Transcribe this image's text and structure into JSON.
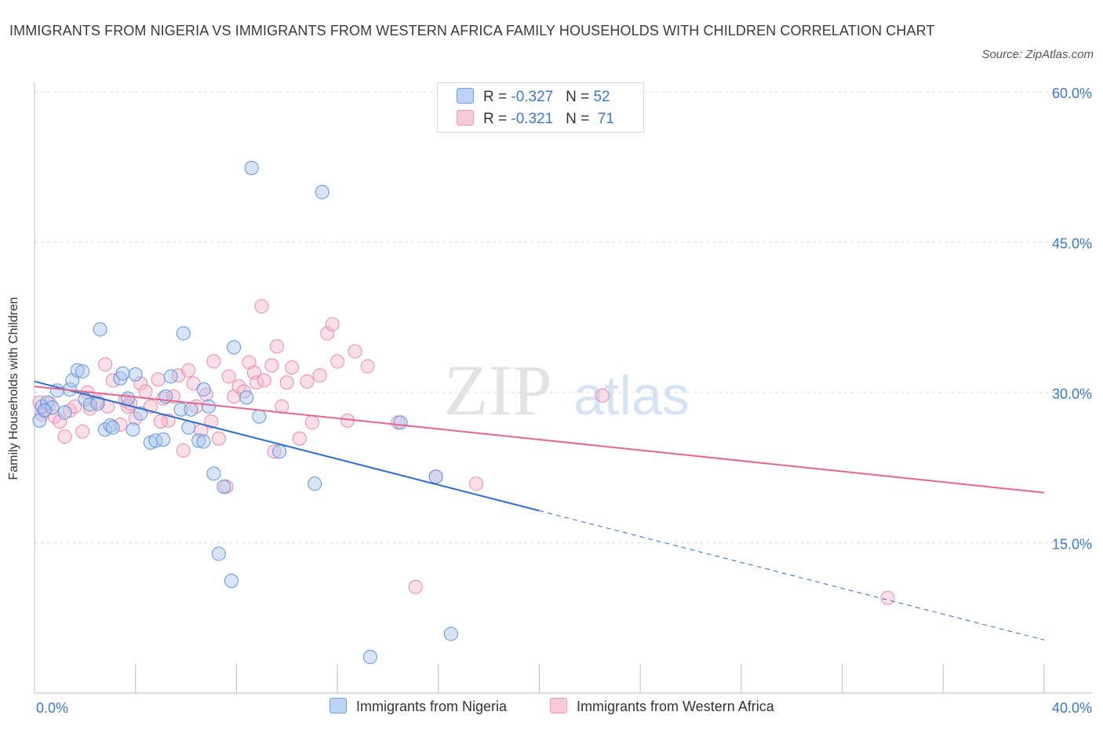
{
  "title": "IMMIGRANTS FROM NIGERIA VS IMMIGRANTS FROM WESTERN AFRICA FAMILY HOUSEHOLDS WITH CHILDREN CORRELATION CHART",
  "source": "Source: ZipAtlas.com",
  "watermark": {
    "zip": "ZIP",
    "atlas": "atlas"
  },
  "legend": {
    "rows": [
      {
        "r_label": "R = ",
        "r_value": "-0.327",
        "n_label": "N = ",
        "n_value": "52"
      },
      {
        "r_label": "R = ",
        "r_value": "-0.321",
        "n_label": "N = ",
        "n_value": "71"
      }
    ]
  },
  "chart_data": {
    "type": "scatter",
    "title": "IMMIGRANTS FROM NIGERIA VS IMMIGRANTS FROM WESTERN AFRICA FAMILY HOUSEHOLDS WITH CHILDREN CORRELATION CHART",
    "xlabel": "",
    "ylabel": "Family Households with Children",
    "xlim": [
      0,
      40
    ],
    "ylim": [
      0,
      60
    ],
    "x_tick_labels": [
      "0.0%",
      "40.0%"
    ],
    "y_ticks": [
      15,
      30,
      45,
      60
    ],
    "y_tick_labels": [
      "15.0%",
      "30.0%",
      "45.0%",
      "60.0%"
    ],
    "grid": true,
    "legend_position": "bottom",
    "colors": {
      "nigeria": "#6fa0e6",
      "nigeria_line": "#2f6fd0",
      "western_africa": "#ef9ab6",
      "western_africa_line": "#e2668f",
      "tick": "#3b78d0"
    },
    "series": [
      {
        "name": "Immigrants from Nigeria",
        "color": "#6fa0e6",
        "trend": {
          "x": [
            0,
            20
          ],
          "y": [
            31.1,
            18.2
          ],
          "dashed_extension_to": [
            40,
            5.3
          ]
        },
        "points": [
          [
            0.2,
            27.2
          ],
          [
            0.3,
            28.6
          ],
          [
            0.5,
            29.0
          ],
          [
            0.7,
            28.5
          ],
          [
            0.9,
            30.2
          ],
          [
            1.4,
            30.3
          ],
          [
            1.5,
            31.2
          ],
          [
            1.7,
            32.2
          ],
          [
            1.9,
            32.1
          ],
          [
            2.0,
            29.3
          ],
          [
            2.2,
            28.8
          ],
          [
            2.5,
            28.9
          ],
          [
            2.6,
            36.3
          ],
          [
            2.8,
            26.3
          ],
          [
            3.0,
            26.7
          ],
          [
            3.1,
            26.5
          ],
          [
            3.4,
            31.4
          ],
          [
            3.5,
            31.9
          ],
          [
            3.7,
            29.4
          ],
          [
            3.9,
            26.3
          ],
          [
            4.0,
            31.8
          ],
          [
            4.2,
            27.9
          ],
          [
            4.6,
            25.0
          ],
          [
            4.8,
            25.2
          ],
          [
            5.1,
            25.3
          ],
          [
            5.2,
            29.6
          ],
          [
            5.4,
            31.6
          ],
          [
            5.8,
            28.3
          ],
          [
            5.9,
            35.9
          ],
          [
            6.1,
            26.5
          ],
          [
            6.2,
            28.3
          ],
          [
            6.5,
            25.2
          ],
          [
            6.7,
            30.3
          ],
          [
            6.9,
            28.6
          ],
          [
            7.1,
            21.9
          ],
          [
            7.3,
            13.9
          ],
          [
            7.5,
            20.6
          ],
          [
            7.8,
            11.2
          ],
          [
            7.9,
            34.5
          ],
          [
            8.4,
            29.5
          ],
          [
            8.6,
            52.4
          ],
          [
            8.9,
            27.6
          ],
          [
            9.7,
            24.1
          ],
          [
            11.1,
            20.9
          ],
          [
            11.4,
            50.0
          ],
          [
            13.3,
            3.6
          ],
          [
            14.5,
            27.0
          ],
          [
            15.9,
            21.6
          ],
          [
            16.5,
            5.9
          ],
          [
            0.4,
            28.2
          ],
          [
            1.2,
            28.0
          ],
          [
            6.7,
            25.1
          ]
        ]
      },
      {
        "name": "Immigrants from Western Africa",
        "color": "#ef9ab6",
        "trend": {
          "x": [
            0,
            40
          ],
          "y": [
            30.6,
            20.0
          ]
        },
        "points": [
          [
            0.3,
            27.8
          ],
          [
            0.4,
            28.3
          ],
          [
            0.6,
            28.9
          ],
          [
            0.8,
            27.6
          ],
          [
            1.0,
            27.1
          ],
          [
            1.2,
            25.6
          ],
          [
            1.4,
            28.2
          ],
          [
            1.6,
            28.6
          ],
          [
            1.9,
            26.1
          ],
          [
            2.1,
            30.0
          ],
          [
            2.2,
            28.4
          ],
          [
            2.5,
            29.1
          ],
          [
            2.8,
            32.8
          ],
          [
            2.9,
            28.6
          ],
          [
            3.1,
            31.2
          ],
          [
            3.4,
            26.8
          ],
          [
            3.6,
            29.2
          ],
          [
            3.7,
            28.6
          ],
          [
            4.0,
            27.4
          ],
          [
            4.2,
            30.9
          ],
          [
            4.4,
            30.1
          ],
          [
            4.6,
            28.6
          ],
          [
            4.9,
            31.3
          ],
          [
            5.1,
            29.4
          ],
          [
            5.3,
            27.2
          ],
          [
            5.5,
            29.6
          ],
          [
            5.7,
            31.7
          ],
          [
            5.9,
            24.2
          ],
          [
            6.1,
            32.2
          ],
          [
            6.3,
            30.9
          ],
          [
            6.4,
            28.6
          ],
          [
            6.6,
            26.2
          ],
          [
            6.8,
            29.8
          ],
          [
            7.0,
            27.1
          ],
          [
            7.1,
            33.1
          ],
          [
            7.3,
            25.4
          ],
          [
            7.6,
            20.6
          ],
          [
            7.7,
            31.6
          ],
          [
            7.9,
            29.6
          ],
          [
            8.1,
            30.6
          ],
          [
            8.3,
            30.1
          ],
          [
            8.5,
            33.0
          ],
          [
            8.7,
            32.0
          ],
          [
            8.8,
            31.0
          ],
          [
            9.0,
            38.6
          ],
          [
            9.1,
            31.2
          ],
          [
            9.4,
            32.7
          ],
          [
            9.6,
            34.6
          ],
          [
            9.8,
            28.6
          ],
          [
            10.0,
            31.0
          ],
          [
            10.2,
            32.5
          ],
          [
            10.5,
            25.4
          ],
          [
            10.8,
            31.1
          ],
          [
            11.0,
            27.0
          ],
          [
            11.3,
            31.7
          ],
          [
            11.6,
            35.9
          ],
          [
            11.8,
            36.8
          ],
          [
            12.0,
            33.1
          ],
          [
            12.4,
            27.2
          ],
          [
            12.7,
            34.1
          ],
          [
            13.2,
            32.6
          ],
          [
            14.4,
            27.0
          ],
          [
            15.1,
            10.6
          ],
          [
            15.9,
            21.6
          ],
          [
            17.5,
            20.9
          ],
          [
            22.5,
            29.7
          ],
          [
            33.8,
            9.5
          ],
          [
            9.5,
            24.1
          ],
          [
            5.0,
            27.1
          ],
          [
            3.8,
            28.9
          ],
          [
            0.2,
            29.0
          ]
        ]
      }
    ]
  },
  "bottom_legend": [
    {
      "label": "Immigrants from Nigeria"
    },
    {
      "label": "Immigrants from Western Africa"
    }
  ]
}
